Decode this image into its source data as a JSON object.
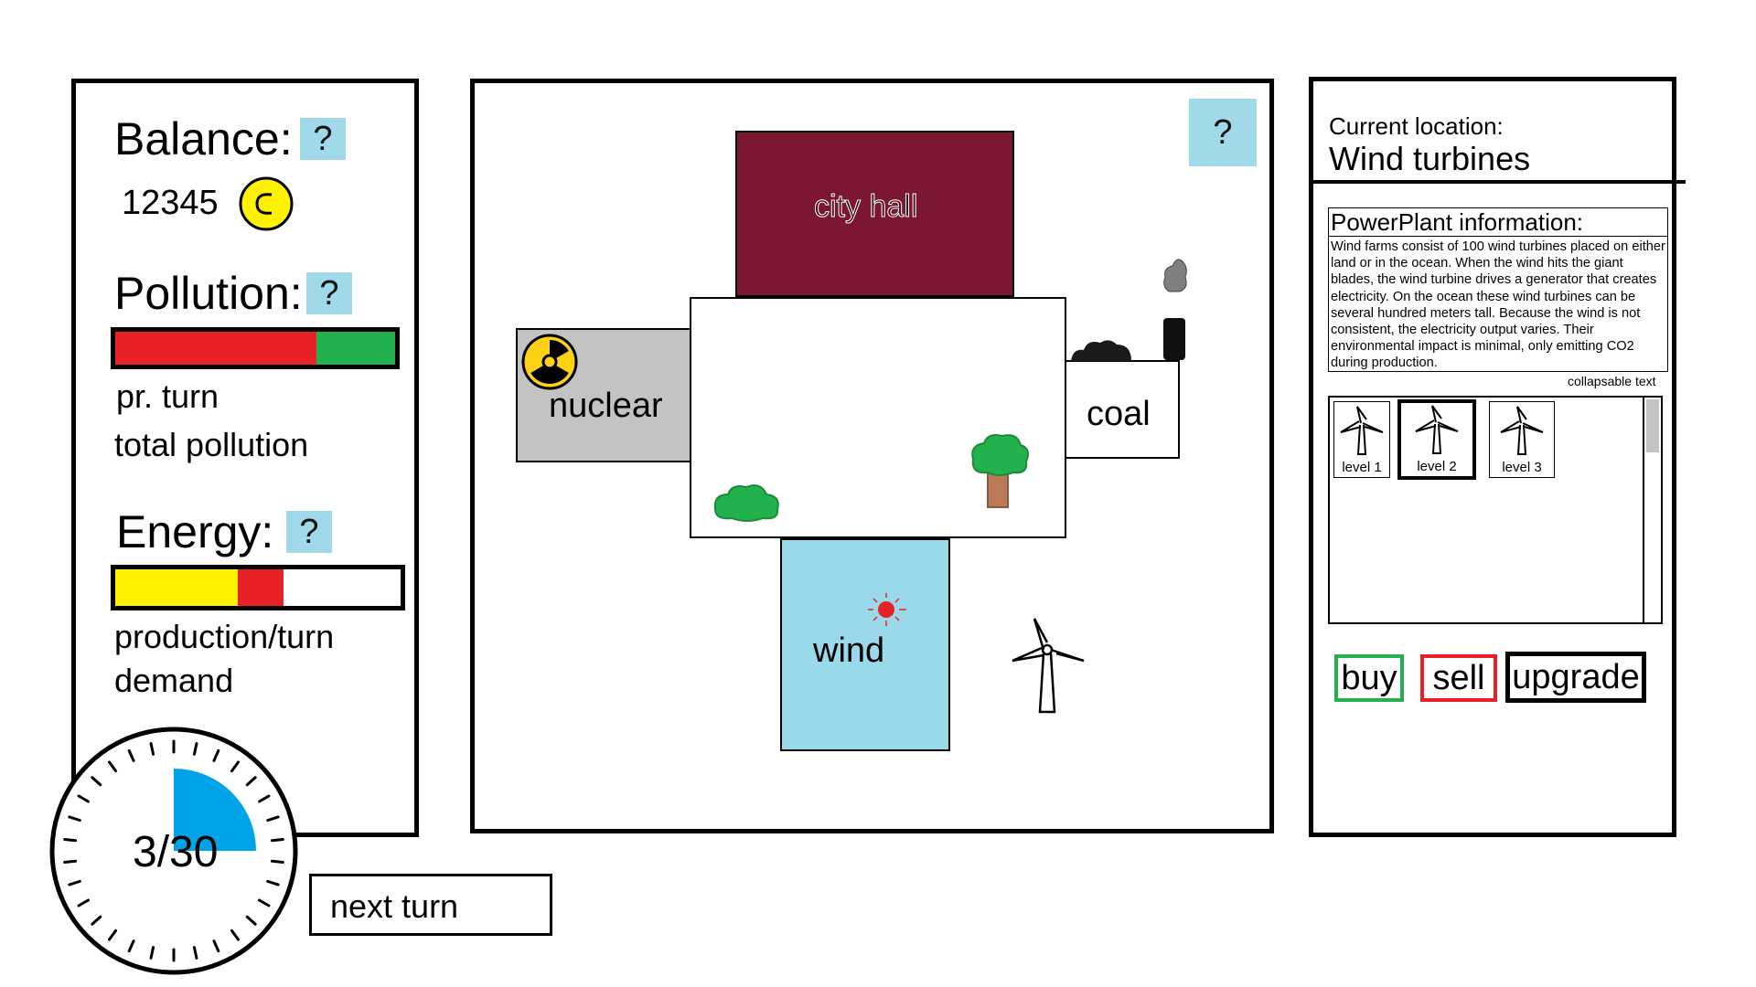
{
  "stats": {
    "balance_label": "Balance:",
    "balance_value": "12345",
    "coin_symbol": "C",
    "help_symbol": "?",
    "pollution_label": "Pollution:",
    "pollution_per_turn_fraction": 0.72,
    "pollution_row1": "pr. turn",
    "pollution_row2": "total pollution",
    "energy_label": "Energy:",
    "energy_production_fraction": 0.43,
    "energy_demand_fraction": 0.16,
    "energy_row1": "production/turn",
    "energy_row2": "demand"
  },
  "turn": {
    "counter": "3/30",
    "turn_fraction": 0.1,
    "next_button": "next turn"
  },
  "map": {
    "help_symbol": "?",
    "city_hall": "city hall",
    "nuclear": "nuclear",
    "coal": "coal",
    "wind": "wind"
  },
  "info": {
    "location_label": "Current location:",
    "location_value": "Wind turbines",
    "section_title": "PowerPlant information:",
    "description": "Wind farms consist of 100 wind turbines placed on either land or in the ocean. When the wind hits the giant blades, the wind turbine drives a generator that creates electricity. On the ocean these wind turbines can be several hundred meters tall. Because the wind is not consistent, the electricity output varies. Their environmental impact is minimal, only emitting CO2 during production.",
    "collapse_note": "collapsable text",
    "levels": [
      {
        "label": "level 1"
      },
      {
        "label": "level 2"
      },
      {
        "label": "level 3"
      }
    ],
    "buy": "buy",
    "sell": "sell",
    "upgrade": "upgrade"
  },
  "colors": {
    "pollution_bad": "#e82127",
    "pollution_good": "#22b14c",
    "energy_production": "#fff200",
    "energy_demand": "#e82127",
    "help_bg": "#9fd9ea",
    "city_hall": "#7b1730",
    "nuclear": "#c3c3c3",
    "wind": "#99d9ea",
    "coin": "#fff200",
    "timer": "#00a2e8"
  },
  "icons": [
    "coin-icon",
    "radiation-icon",
    "tree-icon",
    "bush-icon",
    "sun-icon",
    "wind-turbine-icon",
    "smokestack-icon",
    "smoke-icon",
    "coal-pile-icon"
  ]
}
